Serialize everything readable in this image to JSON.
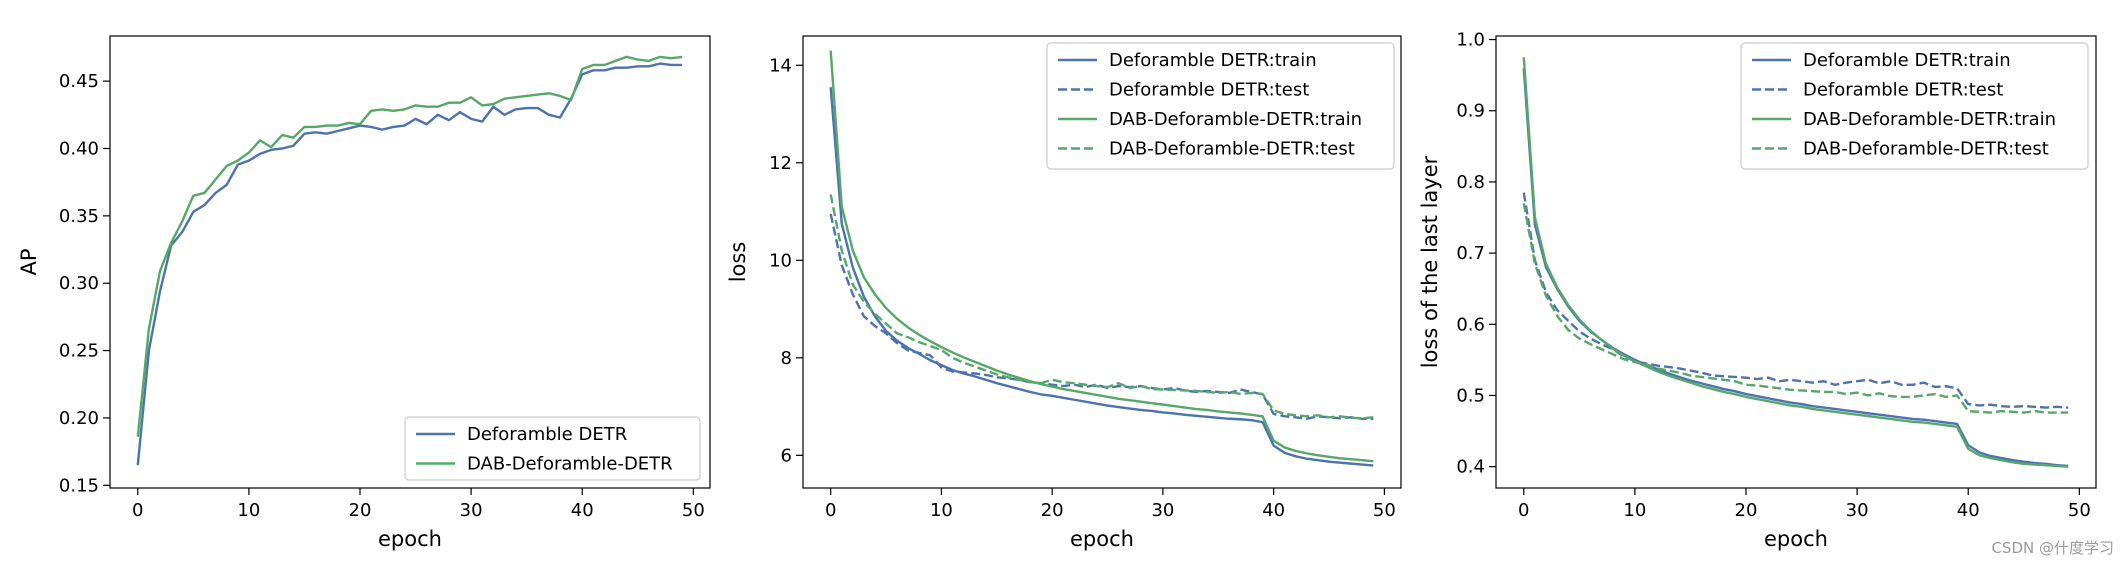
{
  "watermark": "CSDN @什度学习",
  "colors": {
    "blue": "#4C72B0",
    "green": "#55A868"
  },
  "chart_data": [
    {
      "type": "line",
      "xlabel": "epoch",
      "ylabel": "AP",
      "xlim": [
        -2.5,
        51.5
      ],
      "ylim": [
        0.148,
        0.4835
      ],
      "xticks": [
        0,
        10,
        20,
        30,
        40,
        50
      ],
      "yticks": [
        0.15,
        0.2,
        0.25,
        0.3,
        0.35,
        0.4,
        0.45
      ],
      "ytick_labels": [
        "0.15",
        "0.20",
        "0.25",
        "0.30",
        "0.35",
        "0.40",
        "0.45"
      ],
      "legend_position": "lower-right",
      "series": [
        {
          "name": "Deforamble DETR",
          "color": "#4C72B0",
          "style": "solid",
          "values": [
            0.165,
            0.25,
            0.294,
            0.328,
            0.338,
            0.353,
            0.358,
            0.367,
            0.373,
            0.388,
            0.391,
            0.396,
            0.399,
            0.4,
            0.402,
            0.411,
            0.412,
            0.411,
            0.413,
            0.415,
            0.417,
            0.416,
            0.414,
            0.416,
            0.417,
            0.422,
            0.418,
            0.425,
            0.421,
            0.427,
            0.422,
            0.42,
            0.431,
            0.425,
            0.429,
            0.43,
            0.43,
            0.425,
            0.423,
            0.437,
            0.455,
            0.458,
            0.458,
            0.46,
            0.46,
            0.461,
            0.461,
            0.463,
            0.462,
            0.462
          ]
        },
        {
          "name": "DAB-Deforamble-DETR",
          "color": "#55A868",
          "style": "solid",
          "values": [
            0.186,
            0.266,
            0.309,
            0.33,
            0.346,
            0.365,
            0.367,
            0.377,
            0.387,
            0.391,
            0.397,
            0.406,
            0.401,
            0.41,
            0.408,
            0.416,
            0.416,
            0.417,
            0.417,
            0.419,
            0.418,
            0.428,
            0.429,
            0.428,
            0.429,
            0.432,
            0.431,
            0.431,
            0.434,
            0.434,
            0.438,
            0.432,
            0.433,
            0.437,
            0.438,
            0.439,
            0.44,
            0.441,
            0.439,
            0.436,
            0.459,
            0.462,
            0.462,
            0.465,
            0.468,
            0.466,
            0.465,
            0.468,
            0.467,
            0.468
          ]
        }
      ]
    },
    {
      "type": "line",
      "xlabel": "epoch",
      "ylabel": "loss",
      "xlim": [
        -2.5,
        51.5
      ],
      "ylim": [
        5.33,
        14.6
      ],
      "xticks": [
        0,
        10,
        20,
        30,
        40,
        50
      ],
      "yticks": [
        6,
        8,
        10,
        12,
        14
      ],
      "ytick_labels": [
        "6",
        "8",
        "10",
        "12",
        "14"
      ],
      "legend_position": "top-right",
      "series": [
        {
          "name": "Deforamble DETR:train",
          "color": "#4C72B0",
          "style": "solid",
          "values": [
            13.55,
            10.75,
            9.85,
            9.25,
            8.85,
            8.55,
            8.35,
            8.2,
            8.08,
            7.95,
            7.85,
            7.75,
            7.68,
            7.62,
            7.55,
            7.48,
            7.42,
            7.36,
            7.3,
            7.25,
            7.22,
            7.18,
            7.14,
            7.1,
            7.06,
            7.02,
            6.99,
            6.96,
            6.93,
            6.91,
            6.88,
            6.86,
            6.83,
            6.81,
            6.79,
            6.77,
            6.75,
            6.74,
            6.72,
            6.68,
            6.2,
            6.05,
            5.98,
            5.93,
            5.9,
            5.87,
            5.85,
            5.83,
            5.81,
            5.79
          ]
        },
        {
          "name": "Deforamble DETR:test",
          "color": "#4C72B0",
          "style": "dashed",
          "values": [
            10.95,
            9.9,
            9.3,
            8.85,
            8.65,
            8.5,
            8.3,
            8.15,
            8.1,
            8.05,
            7.8,
            7.72,
            7.7,
            7.68,
            7.65,
            7.6,
            7.58,
            7.55,
            7.5,
            7.48,
            7.45,
            7.42,
            7.45,
            7.4,
            7.45,
            7.38,
            7.42,
            7.4,
            7.42,
            7.38,
            7.35,
            7.38,
            7.33,
            7.3,
            7.32,
            7.3,
            7.28,
            7.35,
            7.3,
            7.25,
            6.85,
            6.8,
            6.78,
            6.75,
            6.8,
            6.78,
            6.76,
            6.78,
            6.75,
            6.75
          ]
        },
        {
          "name": "DAB-Deforamble-DETR:train",
          "color": "#55A868",
          "style": "solid",
          "values": [
            14.3,
            11.1,
            10.2,
            9.65,
            9.3,
            9.02,
            8.8,
            8.62,
            8.47,
            8.34,
            8.22,
            8.11,
            8.01,
            7.92,
            7.83,
            7.74,
            7.66,
            7.59,
            7.52,
            7.46,
            7.41,
            7.36,
            7.32,
            7.28,
            7.24,
            7.2,
            7.16,
            7.13,
            7.1,
            7.07,
            7.04,
            7.01,
            6.98,
            6.95,
            6.93,
            6.9,
            6.88,
            6.86,
            6.83,
            6.8,
            6.3,
            6.16,
            6.09,
            6.04,
            6.0,
            5.97,
            5.94,
            5.92,
            5.9,
            5.88
          ]
        },
        {
          "name": "DAB-Deforamble-DETR:test",
          "color": "#55A868",
          "style": "dashed",
          "values": [
            11.35,
            10.2,
            9.5,
            9.15,
            8.9,
            8.7,
            8.5,
            8.42,
            8.32,
            8.24,
            8.16,
            8.0,
            7.9,
            7.82,
            7.74,
            7.66,
            7.6,
            7.55,
            7.5,
            7.48,
            7.55,
            7.5,
            7.48,
            7.45,
            7.42,
            7.4,
            7.48,
            7.38,
            7.42,
            7.36,
            7.35,
            7.34,
            7.33,
            7.32,
            7.3,
            7.28,
            7.3,
            7.26,
            7.28,
            7.26,
            6.92,
            6.85,
            6.82,
            6.8,
            6.82,
            6.78,
            6.8,
            6.77,
            6.76,
            6.78
          ]
        }
      ]
    },
    {
      "type": "line",
      "xlabel": "epoch",
      "ylabel": "loss of the last layer",
      "xlim": [
        -2.5,
        51.5
      ],
      "ylim": [
        0.37,
        1.005
      ],
      "xticks": [
        0,
        10,
        20,
        30,
        40,
        50
      ],
      "yticks": [
        0.4,
        0.5,
        0.6,
        0.7,
        0.8,
        0.9,
        1.0
      ],
      "ytick_labels": [
        "0.4",
        "0.5",
        "0.6",
        "0.7",
        "0.8",
        "0.9",
        "1.0"
      ],
      "legend_position": "top-right",
      "series": [
        {
          "name": "Deforamble DETR:train",
          "color": "#4C72B0",
          "style": "solid",
          "values": [
            0.96,
            0.74,
            0.68,
            0.65,
            0.625,
            0.605,
            0.59,
            0.578,
            0.567,
            0.558,
            0.55,
            0.543,
            0.537,
            0.531,
            0.526,
            0.521,
            0.517,
            0.513,
            0.509,
            0.506,
            0.502,
            0.499,
            0.496,
            0.493,
            0.49,
            0.488,
            0.485,
            0.483,
            0.481,
            0.479,
            0.477,
            0.475,
            0.473,
            0.471,
            0.469,
            0.467,
            0.466,
            0.464,
            0.462,
            0.46,
            0.43,
            0.42,
            0.415,
            0.412,
            0.409,
            0.407,
            0.405,
            0.404,
            0.402,
            0.401
          ]
        },
        {
          "name": "Deforamble DETR:test",
          "color": "#4C72B0",
          "style": "dashed",
          "values": [
            0.785,
            0.69,
            0.645,
            0.62,
            0.605,
            0.59,
            0.58,
            0.572,
            0.565,
            0.555,
            0.548,
            0.545,
            0.542,
            0.54,
            0.538,
            0.535,
            0.532,
            0.528,
            0.527,
            0.526,
            0.525,
            0.523,
            0.525,
            0.52,
            0.522,
            0.52,
            0.518,
            0.52,
            0.515,
            0.518,
            0.52,
            0.522,
            0.517,
            0.52,
            0.515,
            0.515,
            0.518,
            0.512,
            0.513,
            0.51,
            0.488,
            0.486,
            0.487,
            0.485,
            0.484,
            0.485,
            0.484,
            0.483,
            0.484,
            0.483
          ]
        },
        {
          "name": "DAB-Deforamble-DETR:train",
          "color": "#55A868",
          "style": "solid",
          "values": [
            0.975,
            0.75,
            0.685,
            0.652,
            0.627,
            0.607,
            0.591,
            0.578,
            0.566,
            0.556,
            0.548,
            0.541,
            0.534,
            0.528,
            0.523,
            0.518,
            0.513,
            0.509,
            0.505,
            0.502,
            0.498,
            0.495,
            0.492,
            0.489,
            0.486,
            0.484,
            0.481,
            0.479,
            0.477,
            0.475,
            0.473,
            0.471,
            0.469,
            0.467,
            0.465,
            0.463,
            0.462,
            0.46,
            0.458,
            0.456,
            0.425,
            0.416,
            0.412,
            0.409,
            0.406,
            0.404,
            0.403,
            0.402,
            0.401,
            0.4
          ]
        },
        {
          "name": "DAB-Deforamble-DETR:test",
          "color": "#55A868",
          "style": "dashed",
          "values": [
            0.77,
            0.685,
            0.64,
            0.612,
            0.592,
            0.58,
            0.572,
            0.565,
            0.558,
            0.551,
            0.547,
            0.544,
            0.538,
            0.535,
            0.532,
            0.528,
            0.526,
            0.524,
            0.522,
            0.52,
            0.515,
            0.514,
            0.512,
            0.51,
            0.508,
            0.507,
            0.506,
            0.505,
            0.505,
            0.502,
            0.504,
            0.5,
            0.503,
            0.499,
            0.498,
            0.498,
            0.5,
            0.502,
            0.498,
            0.5,
            0.478,
            0.477,
            0.476,
            0.478,
            0.477,
            0.476,
            0.478,
            0.476,
            0.476,
            0.476
          ]
        }
      ]
    }
  ]
}
